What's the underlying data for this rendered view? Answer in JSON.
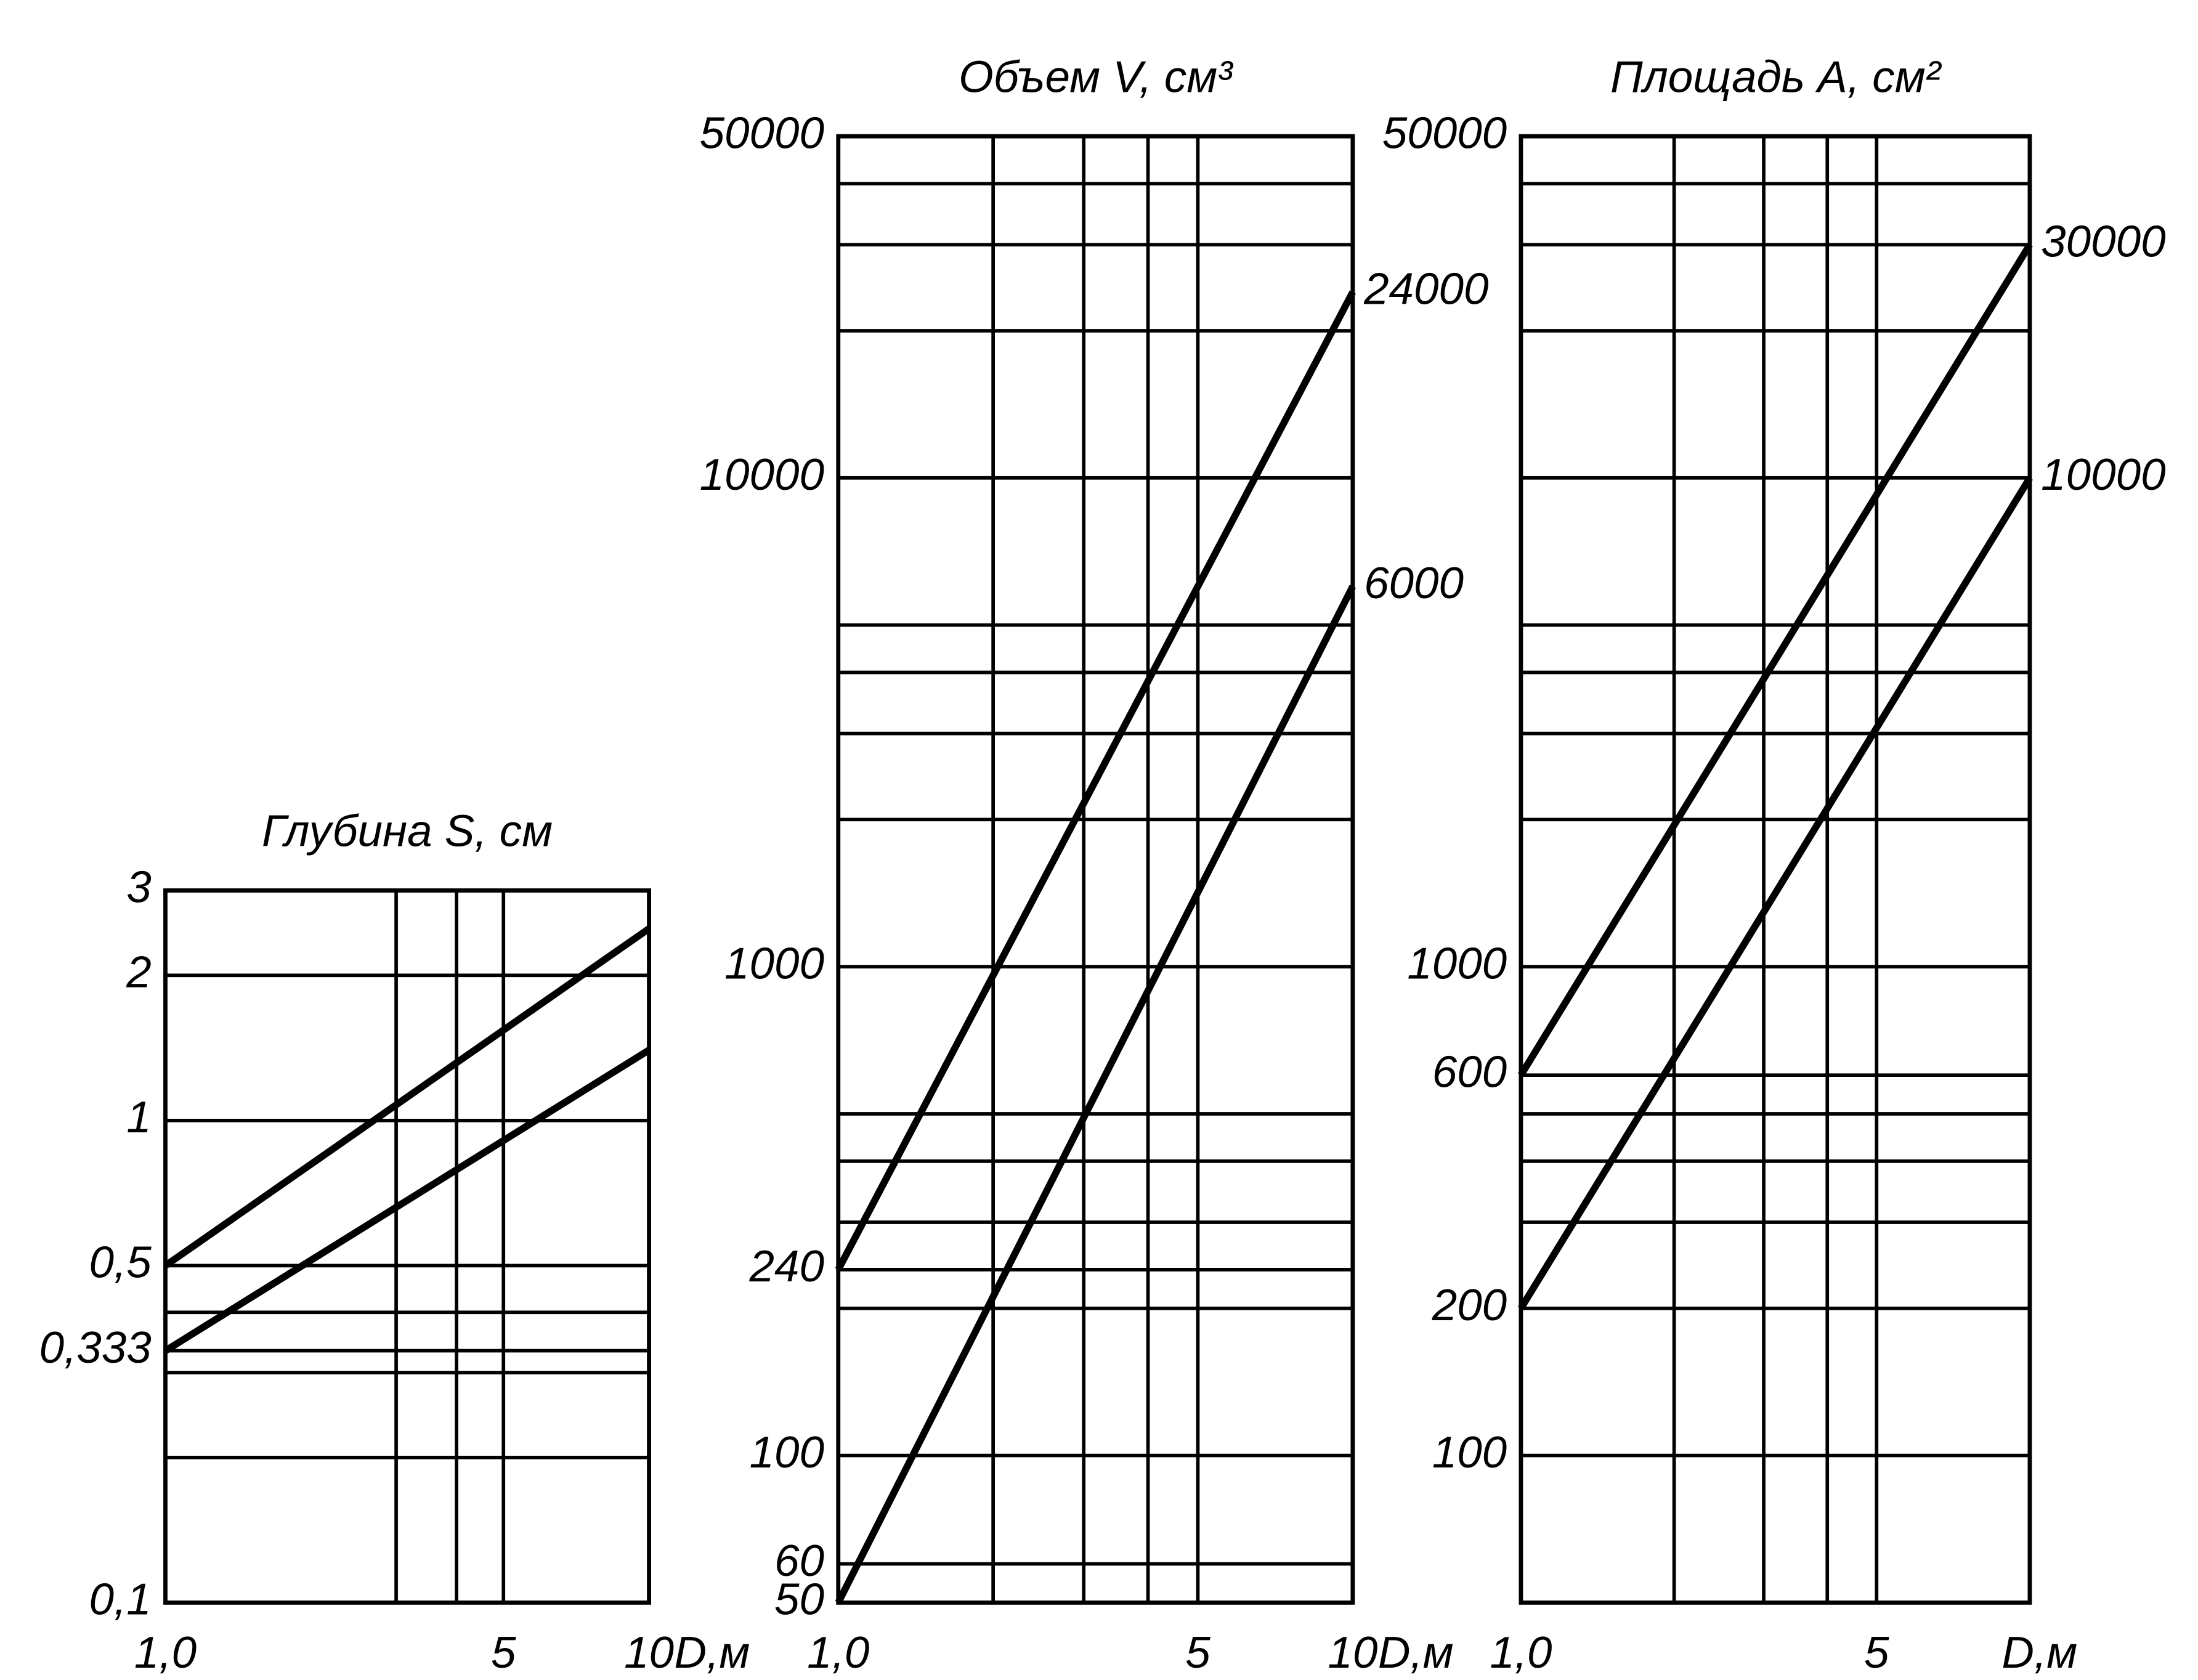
{
  "chart_data": [
    {
      "type": "line",
      "title": "Глубина S, см",
      "x_label": "D,м",
      "log_x": true,
      "log_y": true,
      "grid": true,
      "x": [
        1,
        10
      ],
      "series": [
        {
          "color": "#000000",
          "values": [
            0.5,
            2.5
          ]
        },
        {
          "color": "#000000",
          "values": [
            0.333,
            1.4
          ]
        }
      ],
      "xlim": [
        1,
        10
      ],
      "xticks": [
        {
          "value": 1,
          "label": "1,0"
        },
        5,
        10
      ],
      "minor_xticks": [
        3,
        4
      ],
      "ylim": [
        0.1,
        3
      ],
      "yticks": [
        {
          "value": 0.1,
          "label": "0,1"
        },
        {
          "value": 0.333,
          "label": "0,333"
        },
        {
          "value": 0.5,
          "label": "0,5"
        },
        1,
        2,
        3
      ],
      "minor_yticks": [
        0.2,
        0.3,
        0.4
      ]
    },
    {
      "type": "line",
      "title": "Объем V, см³",
      "x_label": "D,м",
      "log_x": true,
      "log_y": true,
      "grid": true,
      "x": [
        1,
        10
      ],
      "series": [
        {
          "color": "#000000",
          "values": [
            240,
            24000
          ]
        },
        {
          "color": "#000000",
          "values": [
            50,
            6000
          ]
        }
      ],
      "xlim": [
        1,
        10
      ],
      "xticks": [
        {
          "value": 1,
          "label": "1,0"
        },
        5,
        10
      ],
      "minor_xticks": [
        2,
        3,
        4
      ],
      "ylim": [
        50,
        50000
      ],
      "yticks": [
        50,
        60,
        100,
        240,
        1000,
        10000,
        50000
      ],
      "minor_yticks": [
        200,
        300,
        400,
        500,
        2000,
        3000,
        4000,
        5000,
        20000,
        30000,
        40000
      ]
    },
    {
      "type": "line",
      "title": "Площадь A, см²",
      "x_label": "D,м",
      "log_x": true,
      "log_y": true,
      "grid": true,
      "x": [
        1,
        10
      ],
      "series": [
        {
          "color": "#000000",
          "values": [
            600,
            30000
          ]
        },
        {
          "color": "#000000",
          "values": [
            200,
            10000
          ]
        }
      ],
      "xlim": [
        1,
        10
      ],
      "xticks": [
        {
          "value": 1,
          "label": "1,0"
        },
        5
      ],
      "minor_xticks": [
        2,
        3,
        4
      ],
      "ylim": [
        50,
        50000
      ],
      "yticks": [
        100,
        200,
        600,
        1000,
        50000
      ],
      "minor_yticks": [
        300,
        400,
        500,
        2000,
        3000,
        4000,
        5000,
        10000,
        20000,
        30000,
        40000
      ]
    }
  ]
}
